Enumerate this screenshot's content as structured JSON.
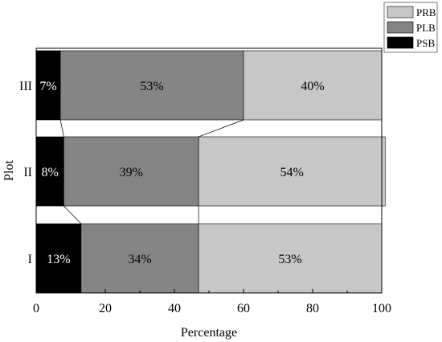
{
  "chart_data": {
    "type": "bar",
    "orientation": "horizontal",
    "stacked": true,
    "title": "",
    "xlabel": "Percentage",
    "ylabel": "Plot",
    "xlim": [
      0,
      100
    ],
    "x_ticks": [
      0,
      20,
      40,
      60,
      80,
      100
    ],
    "categories": [
      "I",
      "II",
      "III"
    ],
    "series": [
      {
        "name": "PSB",
        "values": [
          13,
          8,
          7
        ],
        "labels": [
          "13%",
          "8%",
          "7%"
        ],
        "color": "#000000",
        "label_color": "#ffffff"
      },
      {
        "name": "PLB",
        "values": [
          34,
          39,
          53
        ],
        "labels": [
          "34%",
          "39%",
          "53%"
        ],
        "color": "#858585",
        "label_color": "#000000"
      },
      {
        "name": "PRB",
        "values": [
          53,
          54,
          40
        ],
        "labels": [
          "53%",
          "54%",
          "40%"
        ],
        "color": "#c7c7c7",
        "label_color": "#000000"
      }
    ],
    "legend": {
      "position": "top-right",
      "order": [
        "PRB",
        "PLB",
        "PSB"
      ]
    },
    "grid": false,
    "connector_lines": true
  }
}
